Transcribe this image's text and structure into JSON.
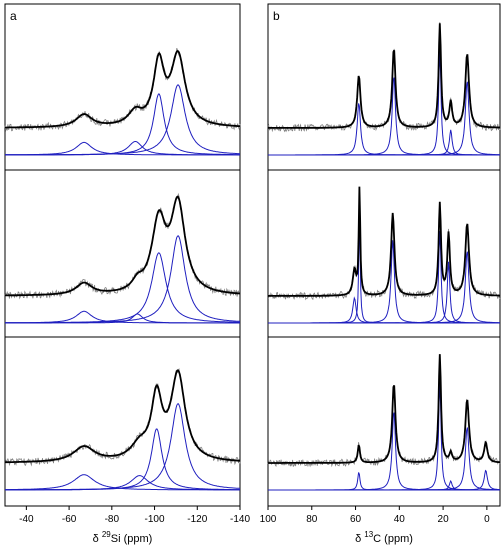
{
  "chart_data": [
    {
      "type": "line",
      "panel_label": "a",
      "xlabel_prefix": "δ ",
      "xlabel_sup": "29",
      "xlabel_main": "Si (ppm)",
      "xlim": [
        -30,
        -140
      ],
      "xticks": [
        -40,
        -60,
        -80,
        -100,
        -120,
        -140
      ],
      "xtick_labels": [
        "-40",
        "-60",
        "-80",
        "-100",
        "-120",
        "-140"
      ],
      "y_ticks_shown": false,
      "colors": {
        "experimental": "#808080",
        "fit": "#000000",
        "components": "#1f1fbf"
      },
      "stacks": [
        {
          "components": [
            {
              "center": -67,
              "fwhm": 9,
              "height": 0.14
            },
            {
              "center": -91,
              "fwhm": 8,
              "height": 0.15
            },
            {
              "center": -102,
              "fwhm": 6,
              "height": 0.68
            },
            {
              "center": -111,
              "fwhm": 8,
              "height": 0.78
            }
          ]
        },
        {
          "components": [
            {
              "center": -67,
              "fwhm": 9,
              "height": 0.13
            },
            {
              "center": -92,
              "fwhm": 6,
              "height": 0.1
            },
            {
              "center": -102,
              "fwhm": 8,
              "height": 0.78
            },
            {
              "center": -111,
              "fwhm": 8,
              "height": 0.97
            }
          ]
        },
        {
          "components": [
            {
              "center": -67,
              "fwhm": 12,
              "height": 0.17
            },
            {
              "center": -93,
              "fwhm": 10,
              "height": 0.16
            },
            {
              "center": -101,
              "fwhm": 6,
              "height": 0.68
            },
            {
              "center": -111,
              "fwhm": 8,
              "height": 0.96
            }
          ]
        }
      ]
    },
    {
      "type": "line",
      "panel_label": "b",
      "xlabel_prefix": "δ ",
      "xlabel_sup": "13",
      "xlabel_main": "C (ppm)",
      "xlim": [
        100,
        -6
      ],
      "xticks": [
        100,
        80,
        60,
        40,
        20,
        0
      ],
      "xtick_labels": [
        "100",
        "80",
        "60",
        "40",
        "20",
        "0"
      ],
      "y_ticks_shown": false,
      "colors": {
        "experimental": "#808080",
        "fit": "#000000",
        "components": "#1f1fbf"
      },
      "stacks": [
        {
          "components": [
            {
              "center": 58.5,
              "fwhm": 1.8,
              "height": 0.58
            },
            {
              "center": 42.5,
              "fwhm": 1.8,
              "height": 0.88
            },
            {
              "center": 21.5,
              "fwhm": 1.3,
              "height": 1.15
            },
            {
              "center": 16.5,
              "fwhm": 1.5,
              "height": 0.28
            },
            {
              "center": 9.0,
              "fwhm": 2.0,
              "height": 0.82
            }
          ]
        },
        {
          "components": [
            {
              "center": 60.5,
              "fwhm": 1.8,
              "height": 0.28
            },
            {
              "center": 58.2,
              "fwhm": 0.8,
              "height": 1.2
            },
            {
              "center": 43.0,
              "fwhm": 1.8,
              "height": 0.92
            },
            {
              "center": 21.5,
              "fwhm": 1.3,
              "height": 1.02
            },
            {
              "center": 17.5,
              "fwhm": 1.4,
              "height": 0.68
            },
            {
              "center": 9.0,
              "fwhm": 2.0,
              "height": 0.8
            }
          ]
        },
        {
          "components": [
            {
              "center": 58.5,
              "fwhm": 1.2,
              "height": 0.2
            },
            {
              "center": 42.5,
              "fwhm": 1.8,
              "height": 0.88
            },
            {
              "center": 21.5,
              "fwhm": 1.3,
              "height": 1.2
            },
            {
              "center": 16.5,
              "fwhm": 1.5,
              "height": 0.1
            },
            {
              "center": 9.0,
              "fwhm": 2.0,
              "height": 0.7
            },
            {
              "center": 0.5,
              "fwhm": 1.8,
              "height": 0.22
            }
          ]
        }
      ]
    }
  ]
}
